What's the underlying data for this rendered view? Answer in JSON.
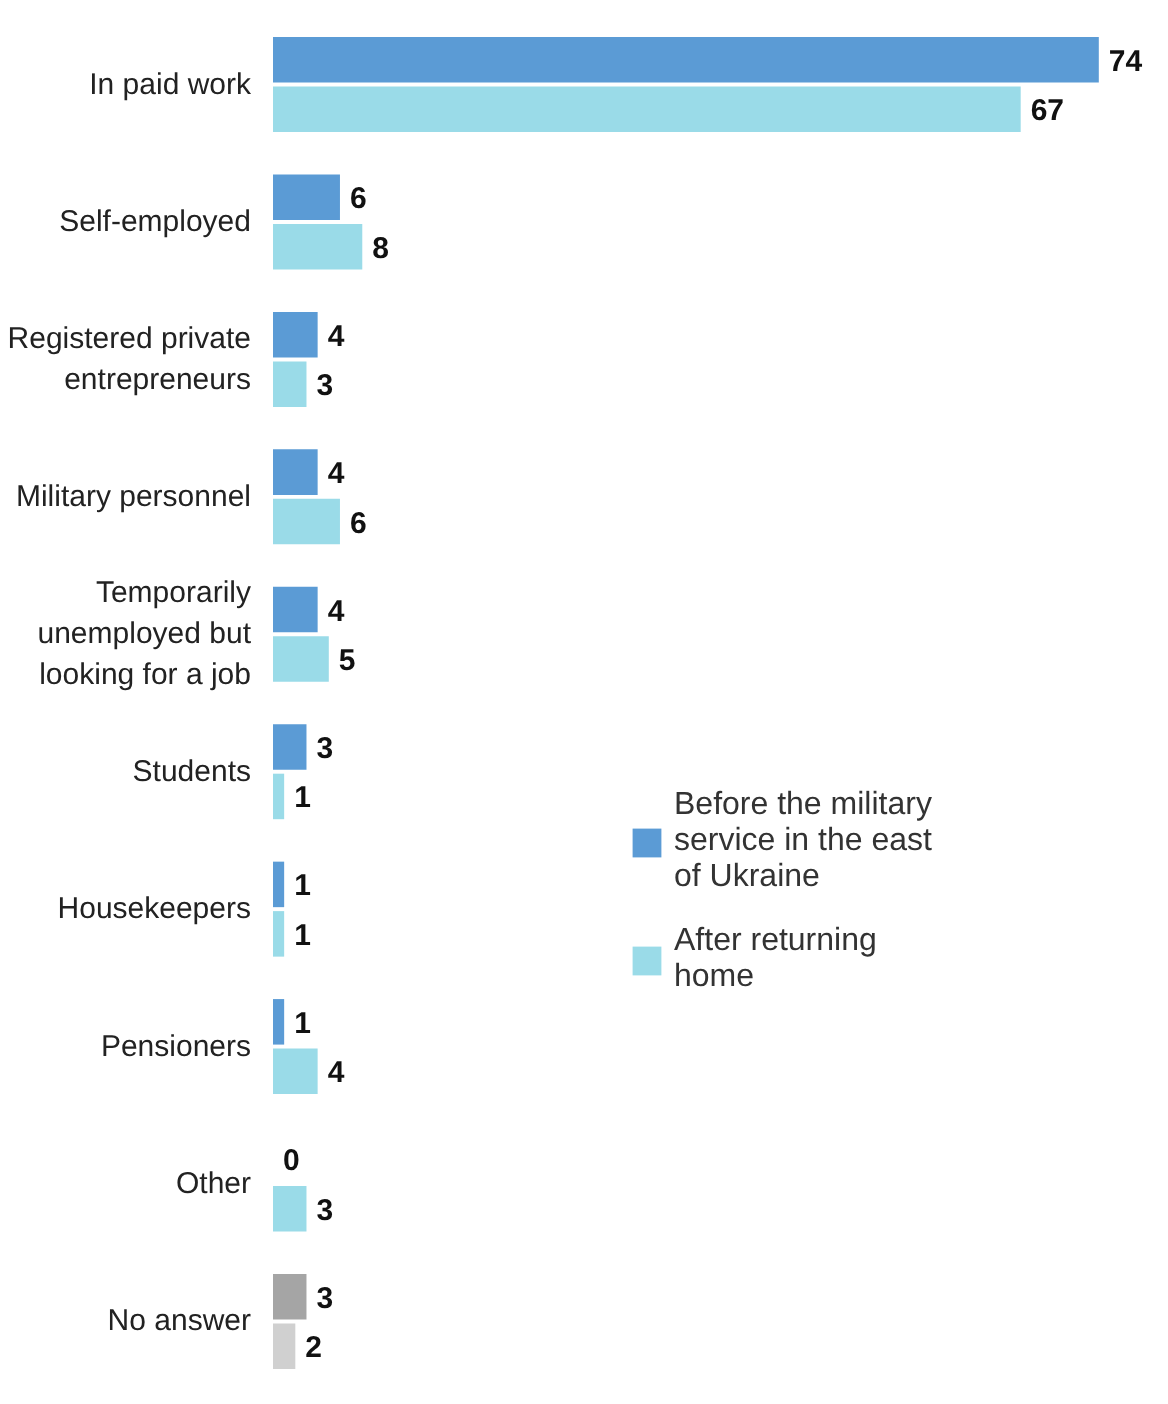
{
  "chart_data": {
    "type": "bar",
    "orientation": "horizontal",
    "categories": [
      "In paid work",
      "Self-employed",
      "Registered private entrepreneurs",
      "Military personnel",
      "Temporarily unemployed but looking for a job",
      "Students",
      "Housekeepers",
      "Pensioners",
      "Other",
      "No answer"
    ],
    "series": [
      {
        "name": "Before the military service in the east of Ukraine",
        "color": "#5b9bd5",
        "colors": [
          "#5b9bd5",
          "#5b9bd5",
          "#5b9bd5",
          "#5b9bd5",
          "#5b9bd5",
          "#5b9bd5",
          "#5b9bd5",
          "#5b9bd5",
          "#5b9bd5",
          "#a5a5a5"
        ],
        "values": [
          74,
          6,
          4,
          4,
          4,
          3,
          1,
          1,
          0,
          3
        ]
      },
      {
        "name": "After returning home",
        "color": "#9adbe8",
        "colors": [
          "#9adbe8",
          "#9adbe8",
          "#9adbe8",
          "#9adbe8",
          "#9adbe8",
          "#9adbe8",
          "#9adbe8",
          "#9adbe8",
          "#9adbe8",
          "#d0d0d0"
        ],
        "values": [
          67,
          8,
          3,
          6,
          5,
          1,
          1,
          4,
          3,
          2
        ]
      }
    ],
    "xlim": [
      0,
      74
    ],
    "data_labels": true,
    "legend": "right",
    "tick_labels": "y",
    "grid": false
  }
}
